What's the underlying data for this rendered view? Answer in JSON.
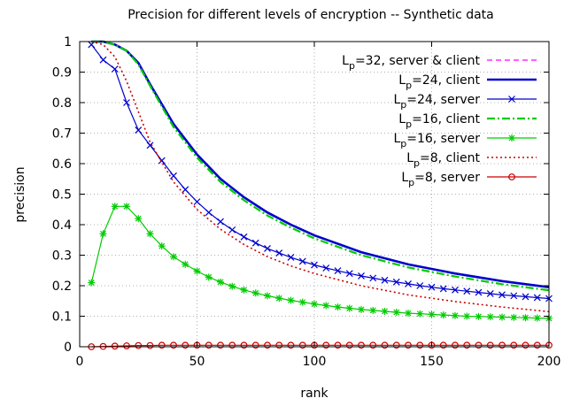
{
  "chart_data": {
    "type": "line",
    "title": "Precision for different levels of encryption -- Synthetic data",
    "xlabel": "rank",
    "ylabel": "precision",
    "xlim": [
      0,
      200
    ],
    "ylim": [
      0,
      1
    ],
    "xticks": [
      0,
      50,
      100,
      150,
      200
    ],
    "yticks": [
      0,
      0.1,
      0.2,
      0.3,
      0.4,
      0.5,
      0.6,
      0.7,
      0.8,
      0.9,
      1
    ],
    "grid": true,
    "legend_position": "top-right",
    "series": [
      {
        "name_main": "L",
        "name_sub": "p",
        "name_rest": "=32, server & client",
        "color": "#ff00ff",
        "line": "dashed",
        "marker": "none",
        "x": [
          5,
          10,
          15,
          20,
          25,
          30,
          40,
          50,
          60,
          70,
          80,
          90,
          100,
          120,
          140,
          160,
          180,
          200
        ],
        "y": [
          1.0,
          1.0,
          0.99,
          0.97,
          0.93,
          0.86,
          0.73,
          0.63,
          0.55,
          0.49,
          0.44,
          0.4,
          0.365,
          0.31,
          0.27,
          0.24,
          0.215,
          0.195
        ]
      },
      {
        "name_main": "L",
        "name_sub": "p",
        "name_rest": "=24,  client",
        "color": "#0000cc",
        "line": "solid-thick",
        "marker": "none",
        "x": [
          5,
          10,
          15,
          20,
          25,
          30,
          40,
          50,
          60,
          70,
          80,
          90,
          100,
          120,
          140,
          160,
          180,
          200
        ],
        "y": [
          1.0,
          1.0,
          0.99,
          0.97,
          0.93,
          0.86,
          0.73,
          0.63,
          0.55,
          0.49,
          0.44,
          0.4,
          0.365,
          0.31,
          0.27,
          0.24,
          0.215,
          0.195
        ]
      },
      {
        "name_main": "L",
        "name_sub": "p",
        "name_rest": "=24,   server",
        "color": "#0000cc",
        "line": "solid",
        "marker": "x",
        "x": [
          5,
          10,
          15,
          20,
          25,
          30,
          35,
          40,
          45,
          50,
          55,
          60,
          65,
          70,
          75,
          80,
          85,
          90,
          95,
          100,
          105,
          110,
          115,
          120,
          125,
          130,
          135,
          140,
          145,
          150,
          155,
          160,
          165,
          170,
          175,
          180,
          185,
          190,
          195,
          200
        ],
        "y": [
          0.99,
          0.94,
          0.91,
          0.8,
          0.71,
          0.66,
          0.61,
          0.56,
          0.515,
          0.475,
          0.44,
          0.41,
          0.383,
          0.36,
          0.34,
          0.322,
          0.307,
          0.293,
          0.28,
          0.268,
          0.258,
          0.249,
          0.24,
          0.232,
          0.225,
          0.218,
          0.212,
          0.206,
          0.2,
          0.195,
          0.19,
          0.186,
          0.182,
          0.178,
          0.174,
          0.17,
          0.167,
          0.164,
          0.161,
          0.158
        ]
      },
      {
        "name_main": "L",
        "name_sub": "p",
        "name_rest": "=16, client",
        "color": "#00cc00",
        "line": "dashdot",
        "marker": "none",
        "x": [
          5,
          10,
          15,
          20,
          25,
          30,
          40,
          50,
          60,
          70,
          80,
          90,
          100,
          120,
          140,
          160,
          180,
          200
        ],
        "y": [
          1.0,
          1.0,
          0.99,
          0.97,
          0.925,
          0.855,
          0.72,
          0.62,
          0.54,
          0.48,
          0.43,
          0.39,
          0.355,
          0.3,
          0.26,
          0.23,
          0.205,
          0.185
        ]
      },
      {
        "name_main": "L",
        "name_sub": "p",
        "name_rest": "=16, server",
        "color": "#00cc00",
        "line": "solid",
        "marker": "star",
        "x": [
          5,
          10,
          15,
          20,
          25,
          30,
          35,
          40,
          45,
          50,
          55,
          60,
          65,
          70,
          75,
          80,
          85,
          90,
          95,
          100,
          105,
          110,
          115,
          120,
          125,
          130,
          135,
          140,
          145,
          150,
          155,
          160,
          165,
          170,
          175,
          180,
          185,
          190,
          195,
          200
        ],
        "y": [
          0.21,
          0.37,
          0.46,
          0.46,
          0.42,
          0.37,
          0.33,
          0.295,
          0.27,
          0.248,
          0.228,
          0.212,
          0.198,
          0.186,
          0.176,
          0.167,
          0.159,
          0.152,
          0.146,
          0.14,
          0.135,
          0.13,
          0.126,
          0.122,
          0.119,
          0.116,
          0.113,
          0.11,
          0.108,
          0.106,
          0.104,
          0.102,
          0.1,
          0.099,
          0.098,
          0.097,
          0.096,
          0.095,
          0.094,
          0.093
        ]
      },
      {
        "name_main": "L",
        "name_sub": "p",
        "name_rest": "=8, client",
        "color": "#cc0000",
        "line": "dotted",
        "marker": "none",
        "x": [
          5,
          10,
          15,
          20,
          25,
          30,
          40,
          50,
          60,
          70,
          80,
          90,
          100,
          120,
          140,
          160,
          180,
          200
        ],
        "y": [
          1.0,
          0.99,
          0.95,
          0.87,
          0.77,
          0.67,
          0.54,
          0.45,
          0.385,
          0.335,
          0.295,
          0.265,
          0.24,
          0.2,
          0.17,
          0.148,
          0.13,
          0.115
        ]
      },
      {
        "name_main": "L",
        "name_sub": "p",
        "name_rest": "=8, server",
        "color": "#cc0000",
        "line": "solid",
        "marker": "circle",
        "x": [
          5,
          10,
          15,
          20,
          25,
          30,
          35,
          40,
          45,
          50,
          55,
          60,
          65,
          70,
          75,
          80,
          85,
          90,
          95,
          100,
          105,
          110,
          115,
          120,
          125,
          130,
          135,
          140,
          145,
          150,
          155,
          160,
          165,
          170,
          175,
          180,
          185,
          190,
          195,
          200
        ],
        "y": [
          0.0,
          0.001,
          0.002,
          0.003,
          0.004,
          0.004,
          0.005,
          0.005,
          0.005,
          0.005,
          0.005,
          0.005,
          0.005,
          0.005,
          0.005,
          0.005,
          0.005,
          0.005,
          0.005,
          0.005,
          0.005,
          0.005,
          0.005,
          0.005,
          0.005,
          0.005,
          0.005,
          0.005,
          0.005,
          0.005,
          0.005,
          0.005,
          0.005,
          0.005,
          0.005,
          0.005,
          0.005,
          0.005,
          0.005,
          0.005
        ]
      }
    ]
  }
}
